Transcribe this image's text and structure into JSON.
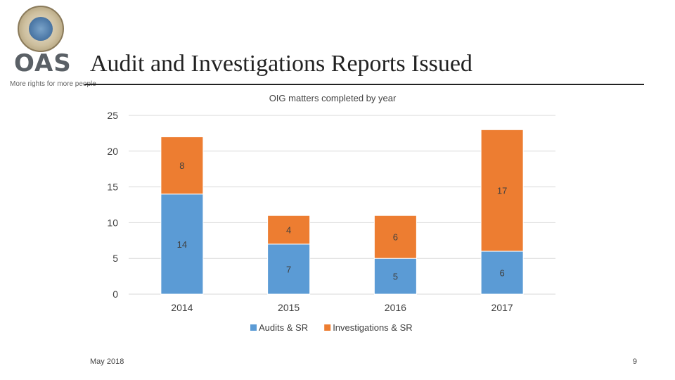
{
  "slide": {
    "title": "Audit and Investigations Reports Issued",
    "logo_text": "OAS",
    "logo_tagline": "More rights for more people",
    "footer_date": "May 2018",
    "page_number": "9"
  },
  "colors": {
    "audits": "#5b9bd5",
    "investigations": "#ed7d31",
    "gridline": "#d9d9d9",
    "axis_text": "#404040"
  },
  "chart_data": {
    "type": "bar",
    "stacked": true,
    "title": "OIG matters completed by year",
    "categories": [
      "2014",
      "2015",
      "2016",
      "2017"
    ],
    "series": [
      {
        "name": "Audits & SR",
        "values": [
          14,
          7,
          5,
          6
        ]
      },
      {
        "name": "Investigations & SR",
        "values": [
          8,
          4,
          6,
          17
        ]
      }
    ],
    "ylim": [
      0,
      25
    ],
    "yticks": [
      0,
      5,
      10,
      15,
      20,
      25
    ],
    "xlabel": "",
    "ylabel": "",
    "grid": true,
    "legend_position": "bottom"
  }
}
